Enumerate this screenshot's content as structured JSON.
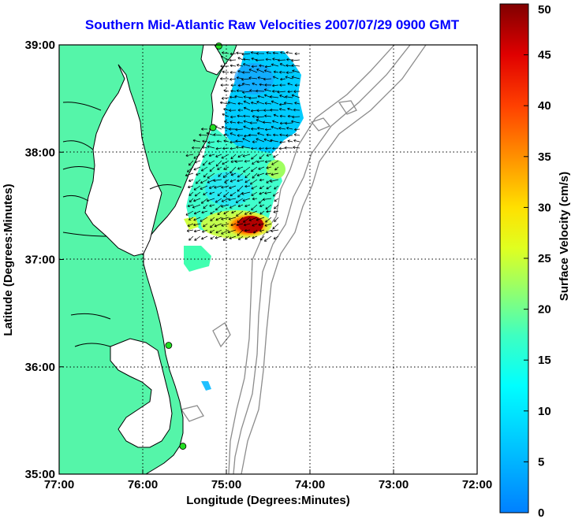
{
  "title": "Southern Mid-Atlantic Raw Velocities 2007/07/29 0900 GMT",
  "x_axis": {
    "label": "Longitude (Degrees:Minutes)",
    "range": [
      -77,
      -72
    ],
    "ticks": [
      {
        "value": -77,
        "label": "77:00"
      },
      {
        "value": -76,
        "label": "76:00"
      },
      {
        "value": -75,
        "label": "75:00"
      },
      {
        "value": -74,
        "label": "74:00"
      },
      {
        "value": -73,
        "label": "73:00"
      },
      {
        "value": -72,
        "label": "72:00"
      }
    ]
  },
  "y_axis": {
    "label": "Latitude (Degrees:Minutes)",
    "range": [
      35,
      39
    ],
    "ticks": [
      {
        "value": 39,
        "label": "39:00"
      },
      {
        "value": 38,
        "label": "38:00"
      },
      {
        "value": 37,
        "label": "37:00"
      },
      {
        "value": 36,
        "label": "36:00"
      },
      {
        "value": 35,
        "label": "35:00"
      }
    ]
  },
  "colorbar": {
    "label": "Surface Velocity (cm/s)",
    "range": [
      0,
      50
    ],
    "ticks": [
      0,
      5,
      10,
      15,
      20,
      25,
      30,
      35,
      40,
      45,
      50
    ]
  },
  "colors": {
    "land": "#55f5a9",
    "coast": "#000000",
    "bathymetry": "#8c8c8c",
    "grid": "#000000",
    "station": "#22dd22"
  },
  "stations": [
    {
      "name": "station-1",
      "lon": -75.09,
      "lat": 38.99
    },
    {
      "name": "station-2",
      "lon": -75.16,
      "lat": 38.23
    },
    {
      "name": "station-3",
      "lon": -75.69,
      "lat": 36.2
    },
    {
      "name": "station-4",
      "lon": -75.52,
      "lat": 35.26
    }
  ]
}
